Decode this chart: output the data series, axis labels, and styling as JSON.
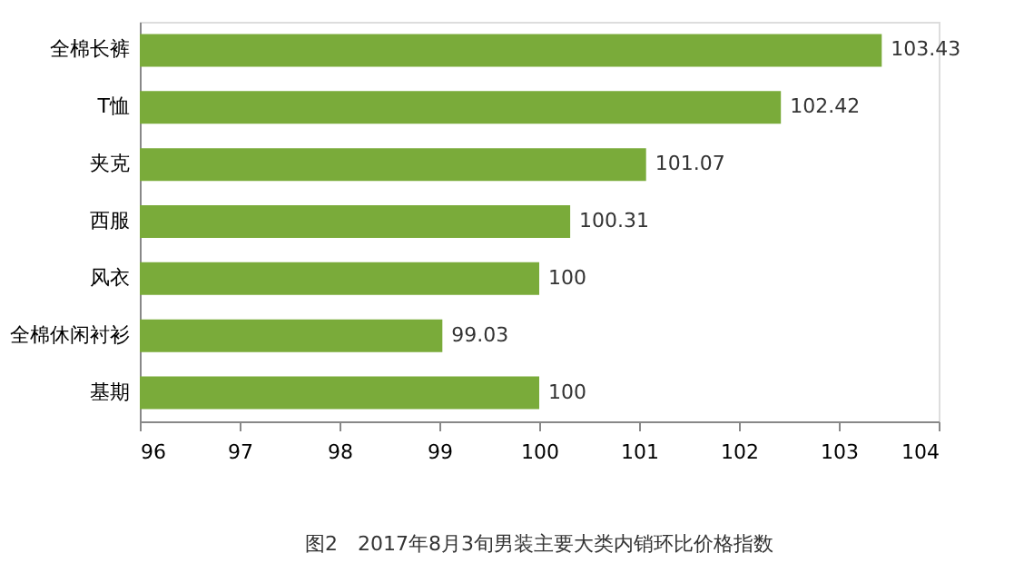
{
  "chart_data": {
    "type": "bar",
    "orientation": "horizontal",
    "title": "图2　2017年8月3旬男装主要大类内销环比价格指数",
    "categories": [
      "全棉长裤",
      "T恤",
      "夹克",
      "西服",
      "风衣",
      "全棉休闲衬衫",
      "基期"
    ],
    "values": [
      103.43,
      102.42,
      101.07,
      100.31,
      100,
      99.03,
      100
    ],
    "color": "#7aab3a",
    "xlim": [
      96,
      104
    ],
    "xticks": [
      96,
      97,
      98,
      99,
      100,
      101,
      102,
      103,
      104
    ],
    "grid": false,
    "data_labels": true
  }
}
